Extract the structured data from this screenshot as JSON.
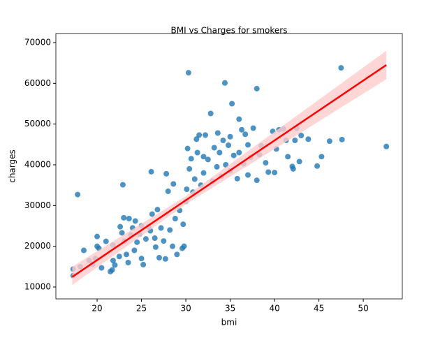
{
  "chart_data": {
    "type": "scatter",
    "title": "BMI vs Charges for smokers",
    "x_label": "bmi",
    "y_label": "charges",
    "color": "#1f77b4",
    "x": [
      17.3,
      17.3,
      17.8,
      18.1,
      18.5,
      19.1,
      19.5,
      19.8,
      20,
      20,
      20.2,
      20.5,
      21,
      21.5,
      21.7,
      21.8,
      21.8,
      22,
      22.5,
      22.6,
      22.8,
      22.9,
      23,
      23.1,
      23.3,
      23.5,
      23.6,
      23.8,
      24,
      24.2,
      24.3,
      24.5,
      24.8,
      25,
      25,
      25.2,
      25.5,
      25.8,
      26,
      26.1,
      26.2,
      26.5,
      26.6,
      26.8,
      27,
      27.2,
      27.5,
      27.7,
      27.8,
      28,
      28.2,
      28.5,
      28.6,
      28.8,
      29,
      29.3,
      29.6,
      29.7,
      29.8,
      30,
      30.1,
      30.2,
      30.3,
      30.4,
      30.6,
      30.8,
      31,
      31.2,
      31.3,
      31.5,
      31.7,
      32,
      32,
      32.2,
      32.5,
      32.8,
      33,
      33.2,
      33.5,
      33.6,
      33.8,
      34,
      34.2,
      34.4,
      34.5,
      34.8,
      35,
      35,
      35.2,
      35.4,
      35.8,
      36,
      36,
      36.3,
      36.5,
      36.7,
      37,
      37,
      37.3,
      37.6,
      38,
      38,
      38.3,
      38.5,
      39,
      39.3,
      39.8,
      40,
      40.2,
      40.5,
      41,
      41.3,
      41.5,
      42,
      42.1,
      42.3,
      42.5,
      42.8,
      43,
      43.8,
      44.8,
      45.3,
      46.2,
      47.5,
      47.6,
      52.6
    ],
    "values": [
      14400,
      12800,
      32700,
      15000,
      19000,
      16500,
      15600,
      17000,
      22400,
      20000,
      19500,
      14700,
      21200,
      13800,
      14200,
      16500,
      20300,
      15400,
      17500,
      24800,
      23300,
      35100,
      27000,
      21300,
      18000,
      16000,
      26800,
      22800,
      24500,
      19000,
      26200,
      21000,
      23000,
      25000,
      17000,
      15500,
      21800,
      24800,
      23800,
      38300,
      27900,
      22000,
      19800,
      29000,
      17200,
      24500,
      21300,
      16900,
      37800,
      33500,
      24000,
      20000,
      35300,
      26800,
      18000,
      28800,
      19500,
      25400,
      20000,
      31000,
      34000,
      44000,
      62600,
      39000,
      41500,
      33300,
      36500,
      46300,
      43000,
      47300,
      35000,
      38000,
      42000,
      47300,
      41300,
      52600,
      36000,
      44200,
      39500,
      47800,
      43000,
      37200,
      46000,
      60100,
      40000,
      44800,
      38500,
      46900,
      55000,
      42300,
      36600,
      51200,
      43000,
      48600,
      40300,
      47500,
      37500,
      44900,
      41800,
      49000,
      58700,
      36200,
      42500,
      44700,
      40500,
      38200,
      48200,
      38100,
      43900,
      48600,
      48800,
      46000,
      42000,
      39600,
      39000,
      46000,
      49000,
      40800,
      47200,
      46300,
      39700,
      42000,
      45800,
      63800,
      46200,
      44500
    ],
    "regression": {
      "color": "#ff0000",
      "ci_color": "#ffcccc",
      "x": [
        17.2,
        30,
        52.6
      ],
      "values": [
        12500,
        31300,
        64500
      ],
      "ci_lower": [
        10500,
        30300,
        61000
      ],
      "ci_upper": [
        15000,
        32300,
        68000
      ]
    },
    "xlim": [
      15.35,
      54.4
    ],
    "ylim": [
      7086,
      72230
    ],
    "xticks": [
      20,
      25,
      30,
      35,
      40,
      45,
      50
    ],
    "yticks": [
      10000,
      20000,
      30000,
      40000,
      50000,
      60000,
      70000
    ]
  }
}
